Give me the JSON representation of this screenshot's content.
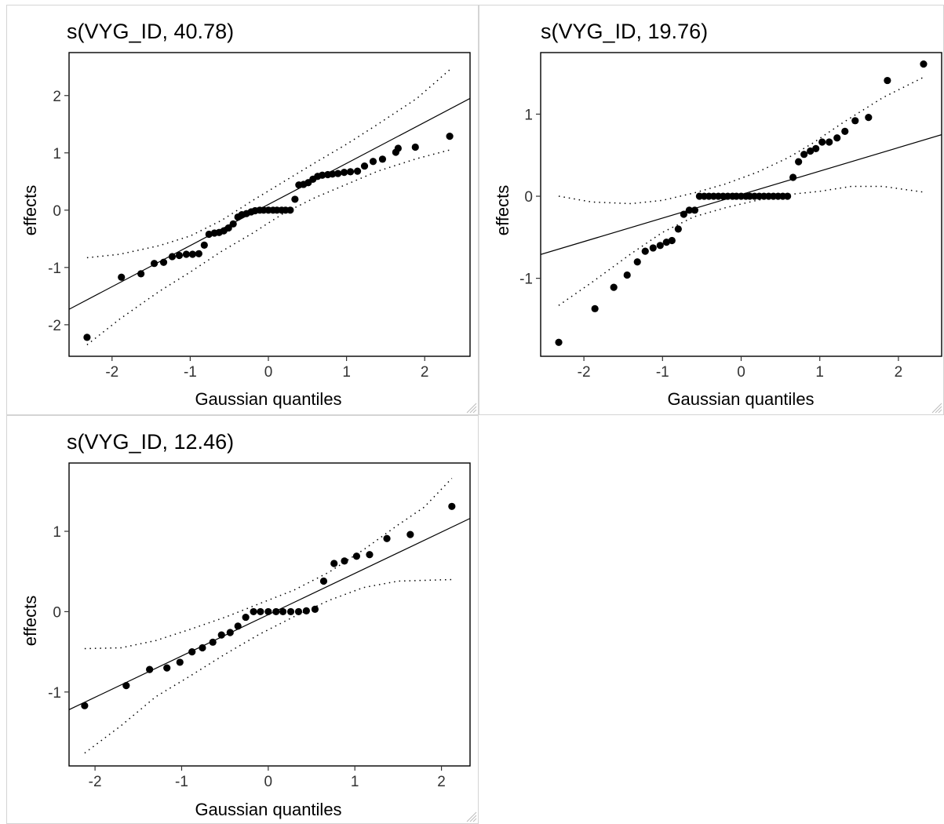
{
  "chart_data": [
    {
      "type": "scatter",
      "title": "s(VYG_ID, 40.78)",
      "xlabel": "Gaussian quantiles",
      "ylabel": "effects",
      "xlim": [
        -2.55,
        2.58
      ],
      "ylim": [
        -2.55,
        2.75
      ],
      "xticks": [
        -2,
        -1,
        0,
        1,
        2
      ],
      "yticks": [
        -2,
        -1,
        0,
        1,
        2
      ],
      "grid": false,
      "reference_line": [
        [
          -2.55,
          -1.73
        ],
        [
          2.58,
          1.95
        ]
      ],
      "band_upper": [
        [
          -2.32,
          -0.83
        ],
        [
          -1.9,
          -0.77
        ],
        [
          -1.4,
          -0.62
        ],
        [
          -1.0,
          -0.45
        ],
        [
          -0.6,
          -0.18
        ],
        [
          -0.2,
          0.17
        ],
        [
          0.2,
          0.5
        ],
        [
          0.6,
          0.83
        ],
        [
          1.0,
          1.15
        ],
        [
          1.4,
          1.5
        ],
        [
          1.9,
          1.95
        ],
        [
          2.32,
          2.45
        ]
      ],
      "band_lower": [
        [
          -2.32,
          -2.35
        ],
        [
          -1.9,
          -1.9
        ],
        [
          -1.4,
          -1.42
        ],
        [
          -1.0,
          -1.08
        ],
        [
          -0.6,
          -0.72
        ],
        [
          -0.2,
          -0.4
        ],
        [
          0.2,
          -0.05
        ],
        [
          0.6,
          0.22
        ],
        [
          1.0,
          0.45
        ],
        [
          1.4,
          0.68
        ],
        [
          1.9,
          0.9
        ],
        [
          2.32,
          1.05
        ]
      ],
      "points": [
        [
          -2.32,
          -2.22
        ],
        [
          -1.88,
          -1.17
        ],
        [
          -1.63,
          -1.11
        ],
        [
          -1.46,
          -0.93
        ],
        [
          -1.34,
          -0.91
        ],
        [
          -1.23,
          -0.81
        ],
        [
          -1.14,
          -0.79
        ],
        [
          -1.05,
          -0.77
        ],
        [
          -0.97,
          -0.77
        ],
        [
          -0.89,
          -0.76
        ],
        [
          -0.82,
          -0.61
        ],
        [
          -0.76,
          -0.42
        ],
        [
          -0.69,
          -0.4
        ],
        [
          -0.63,
          -0.39
        ],
        [
          -0.57,
          -0.36
        ],
        [
          -0.51,
          -0.31
        ],
        [
          -0.45,
          -0.24
        ],
        [
          -0.39,
          -0.12
        ],
        [
          -0.34,
          -0.08
        ],
        [
          -0.28,
          -0.06
        ],
        [
          -0.22,
          -0.03
        ],
        [
          -0.17,
          -0.01
        ],
        [
          -0.11,
          0.0
        ],
        [
          -0.06,
          0.0
        ],
        [
          0.0,
          0.0
        ],
        [
          0.06,
          0.0
        ],
        [
          0.11,
          0.0
        ],
        [
          0.17,
          0.0
        ],
        [
          0.22,
          0.0
        ],
        [
          0.28,
          0.0
        ],
        [
          0.34,
          0.19
        ],
        [
          0.39,
          0.44
        ],
        [
          0.45,
          0.45
        ],
        [
          0.51,
          0.48
        ],
        [
          0.57,
          0.54
        ],
        [
          0.63,
          0.59
        ],
        [
          0.69,
          0.61
        ],
        [
          0.76,
          0.62
        ],
        [
          0.82,
          0.63
        ],
        [
          0.89,
          0.64
        ],
        [
          0.97,
          0.66
        ],
        [
          1.05,
          0.67
        ],
        [
          1.14,
          0.68
        ],
        [
          1.23,
          0.77
        ],
        [
          1.34,
          0.85
        ],
        [
          1.46,
          0.89
        ],
        [
          1.63,
          1.01
        ],
        [
          1.88,
          1.1
        ],
        [
          2.32,
          1.29
        ],
        [
          1.66,
          1.08
        ]
      ]
    },
    {
      "type": "scatter",
      "title": "s(VYG_ID, 19.76)",
      "xlabel": "Gaussian quantiles",
      "ylabel": "effects",
      "xlim": [
        -2.55,
        2.55
      ],
      "ylim": [
        -1.95,
        1.75
      ],
      "xticks": [
        -2,
        -1,
        0,
        1,
        2
      ],
      "yticks": [
        -1,
        0,
        1
      ],
      "grid": false,
      "reference_line": [
        [
          -2.55,
          -0.71
        ],
        [
          2.55,
          0.75
        ]
      ],
      "band_upper": [
        [
          -2.32,
          0.0
        ],
        [
          -1.9,
          -0.07
        ],
        [
          -1.4,
          -0.09
        ],
        [
          -1.0,
          -0.05
        ],
        [
          -0.6,
          0.04
        ],
        [
          -0.2,
          0.15
        ],
        [
          0.2,
          0.29
        ],
        [
          0.6,
          0.47
        ],
        [
          0.9,
          0.64
        ],
        [
          1.3,
          0.9
        ],
        [
          1.8,
          1.2
        ],
        [
          2.32,
          1.45
        ]
      ],
      "band_lower": [
        [
          -2.32,
          -1.33
        ],
        [
          -1.9,
          -1.05
        ],
        [
          -1.4,
          -0.7
        ],
        [
          -1.0,
          -0.44
        ],
        [
          -0.6,
          -0.25
        ],
        [
          -0.2,
          -0.14
        ],
        [
          0.2,
          -0.05
        ],
        [
          0.6,
          0.02
        ],
        [
          1.0,
          0.06
        ],
        [
          1.4,
          0.12
        ],
        [
          1.8,
          0.12
        ],
        [
          2.32,
          0.05
        ]
      ],
      "points": [
        [
          -2.32,
          -1.78
        ],
        [
          -1.86,
          -1.37
        ],
        [
          -1.62,
          -1.11
        ],
        [
          -1.45,
          -0.96
        ],
        [
          -1.32,
          -0.8
        ],
        [
          -1.22,
          -0.67
        ],
        [
          -1.12,
          -0.63
        ],
        [
          -1.03,
          -0.6
        ],
        [
          -0.95,
          -0.56
        ],
        [
          -0.88,
          -0.54
        ],
        [
          -0.8,
          -0.4
        ],
        [
          -0.73,
          -0.22
        ],
        [
          -0.66,
          -0.17
        ],
        [
          -0.59,
          -0.17
        ],
        [
          -0.53,
          0.0
        ],
        [
          -0.47,
          0.0
        ],
        [
          -0.41,
          0.0
        ],
        [
          -0.35,
          0.0
        ],
        [
          -0.29,
          0.0
        ],
        [
          -0.23,
          0.0
        ],
        [
          -0.17,
          0.0
        ],
        [
          -0.11,
          0.0
        ],
        [
          -0.06,
          0.0
        ],
        [
          0.0,
          0.0
        ],
        [
          0.06,
          0.0
        ],
        [
          0.11,
          0.0
        ],
        [
          0.17,
          0.0
        ],
        [
          0.23,
          0.0
        ],
        [
          0.29,
          0.0
        ],
        [
          0.35,
          0.0
        ],
        [
          0.41,
          0.0
        ],
        [
          0.47,
          0.0
        ],
        [
          0.53,
          0.0
        ],
        [
          0.59,
          0.0
        ],
        [
          0.66,
          0.23
        ],
        [
          0.73,
          0.42
        ],
        [
          0.8,
          0.51
        ],
        [
          0.88,
          0.55
        ],
        [
          0.95,
          0.58
        ],
        [
          1.03,
          0.66
        ],
        [
          1.12,
          0.66
        ],
        [
          1.22,
          0.71
        ],
        [
          1.32,
          0.79
        ],
        [
          1.45,
          0.92
        ],
        [
          1.62,
          0.96
        ],
        [
          1.86,
          1.41
        ],
        [
          2.32,
          1.61
        ]
      ]
    },
    {
      "type": "scatter",
      "title": "s(VYG_ID, 12.46)",
      "xlabel": "Gaussian quantiles",
      "ylabel": "effects",
      "xlim": [
        -2.3,
        2.33
      ],
      "ylim": [
        -1.92,
        1.85
      ],
      "xticks": [
        -2,
        -1,
        0,
        1,
        2
      ],
      "yticks": [
        -1,
        0,
        1
      ],
      "grid": false,
      "reference_line": [
        [
          -2.3,
          -1.22
        ],
        [
          2.33,
          1.16
        ]
      ],
      "band_upper": [
        [
          -2.12,
          -0.46
        ],
        [
          -1.7,
          -0.45
        ],
        [
          -1.3,
          -0.36
        ],
        [
          -0.9,
          -0.22
        ],
        [
          -0.5,
          -0.07
        ],
        [
          -0.1,
          0.1
        ],
        [
          0.3,
          0.27
        ],
        [
          0.7,
          0.49
        ],
        [
          1.1,
          0.77
        ],
        [
          1.5,
          1.08
        ],
        [
          1.8,
          1.3
        ],
        [
          2.12,
          1.66
        ]
      ],
      "band_lower": [
        [
          -2.12,
          -1.76
        ],
        [
          -1.7,
          -1.42
        ],
        [
          -1.3,
          -1.06
        ],
        [
          -0.9,
          -0.8
        ],
        [
          -0.5,
          -0.53
        ],
        [
          -0.1,
          -0.28
        ],
        [
          0.3,
          -0.06
        ],
        [
          0.7,
          0.14
        ],
        [
          1.1,
          0.3
        ],
        [
          1.5,
          0.38
        ],
        [
          1.8,
          0.39
        ],
        [
          2.12,
          0.4
        ]
      ],
      "points": [
        [
          -2.12,
          -1.17
        ],
        [
          -1.64,
          -0.92
        ],
        [
          -1.37,
          -0.72
        ],
        [
          -1.17,
          -0.7
        ],
        [
          -1.02,
          -0.63
        ],
        [
          -0.88,
          -0.5
        ],
        [
          -0.76,
          -0.45
        ],
        [
          -0.64,
          -0.38
        ],
        [
          -0.54,
          -0.29
        ],
        [
          -0.44,
          -0.26
        ],
        [
          -0.35,
          -0.18
        ],
        [
          -0.26,
          -0.07
        ],
        [
          -0.17,
          0.0
        ],
        [
          -0.09,
          0.0
        ],
        [
          0.0,
          0.0
        ],
        [
          0.09,
          0.0
        ],
        [
          0.17,
          0.0
        ],
        [
          0.26,
          0.0
        ],
        [
          0.35,
          0.0
        ],
        [
          0.44,
          0.01
        ],
        [
          0.54,
          0.03
        ],
        [
          0.64,
          0.38
        ],
        [
          0.76,
          0.6
        ],
        [
          0.88,
          0.63
        ],
        [
          1.02,
          0.69
        ],
        [
          1.17,
          0.71
        ],
        [
          1.37,
          0.91
        ],
        [
          1.64,
          0.96
        ],
        [
          2.12,
          1.31
        ]
      ]
    }
  ]
}
